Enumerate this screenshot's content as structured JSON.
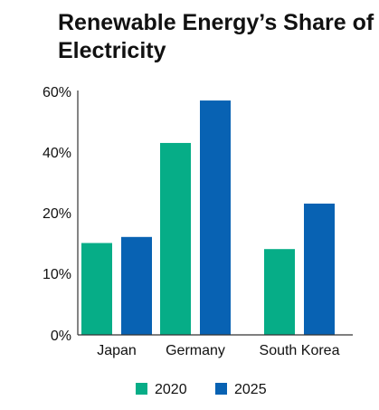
{
  "chart_data": {
    "type": "bar",
    "title": "Renewable Energy’s Share of Electricity",
    "categories": [
      "Japan",
      "Germany",
      "South Korea"
    ],
    "series": [
      {
        "name": "2020",
        "color": "#06ad87",
        "values": [
          15,
          43,
          14
        ]
      },
      {
        "name": "2025",
        "color": "#0862b3",
        "values": [
          16,
          57,
          23
        ]
      }
    ],
    "y_ticks": [
      {
        "value": 0,
        "label": "0%"
      },
      {
        "value": 10,
        "label": "10%"
      },
      {
        "value": 20,
        "label": "20%"
      },
      {
        "value": 40,
        "label": "40%"
      },
      {
        "value": 60,
        "label": "60%"
      }
    ],
    "xlabel": "",
    "ylabel": "",
    "ylim": [
      0,
      60
    ],
    "grid": false,
    "legend_position": "bottom-center"
  }
}
